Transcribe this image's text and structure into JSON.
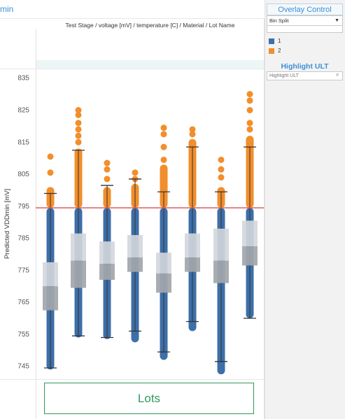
{
  "header": {
    "title_fragment": "min",
    "column_label": "Test Stage / voltage [mV] / temperature [C] / Material / Lot Name"
  },
  "footer": {
    "lots_label": "Lots"
  },
  "overlay_control": {
    "title": "Overlay Control",
    "selected": "Bin Split",
    "legend": [
      {
        "label": "1",
        "color": "#3d6fa8"
      },
      {
        "label": "2",
        "color": "#f28e2b"
      }
    ]
  },
  "highlight": {
    "title": "Highlight ULT",
    "placeholder": "Highlight ULT"
  },
  "chart_data": {
    "type": "box-plot with jittered points",
    "title": "",
    "xlabel": "",
    "ylabel": "Predicted VDDmin [mV]",
    "ylim": [
      741,
      838
    ],
    "yticks": [
      745,
      755,
      765,
      775,
      785,
      795,
      805,
      815,
      825,
      835
    ],
    "reference_line": 794.5,
    "reference_color": "#e05a5a",
    "series_colors": {
      "1": "#3d6fa8",
      "2": "#f28e2b"
    },
    "groups": [
      {
        "bin1_min": 744,
        "bin1_max": 794.5,
        "bin2_max": 801,
        "outliers": [
          805.5,
          810.5
        ],
        "whisker_low": 744.5,
        "whisker_high": 799,
        "q1": 762.5,
        "median": 770,
        "q3": 777.5
      },
      {
        "bin1_min": 754,
        "bin1_max": 794.5,
        "bin2_max": 813,
        "outliers": [
          815,
          817,
          819,
          821,
          823.5,
          825
        ],
        "whisker_low": 754.5,
        "whisker_high": 812.5,
        "q1": 769.5,
        "median": 778,
        "q3": 786.5
      },
      {
        "bin1_min": 753.5,
        "bin1_max": 794.5,
        "bin2_max": 801,
        "outliers": [
          803.5,
          806.5,
          808.5
        ],
        "whisker_low": 754,
        "whisker_high": 801.5,
        "q1": 772,
        "median": 777,
        "q3": 784
      },
      {
        "bin1_min": 752.5,
        "bin1_max": 794.5,
        "bin2_max": 802,
        "outliers": [
          803.5,
          805.5
        ],
        "whisker_low": 756,
        "whisker_high": 803.5,
        "q1": 774.5,
        "median": 779,
        "q3": 786
      },
      {
        "bin1_min": 747,
        "bin1_max": 794.5,
        "bin2_max": 808,
        "outliers": [
          809.5,
          813.5,
          817.5,
          819.5
        ],
        "whisker_low": 749.5,
        "whisker_high": 799.5,
        "q1": 768,
        "median": 774,
        "q3": 780.5
      },
      {
        "bin1_min": 756,
        "bin1_max": 794.5,
        "bin2_max": 816,
        "outliers": [
          817.5,
          819
        ],
        "whisker_low": 759,
        "whisker_high": 813.5,
        "q1": 774.5,
        "median": 779,
        "q3": 786.5
      },
      {
        "bin1_min": 742.5,
        "bin1_max": 794.5,
        "bin2_max": 801,
        "outliers": [
          804,
          806.5,
          809.5
        ],
        "whisker_low": 746.5,
        "whisker_high": 799.5,
        "q1": 771,
        "median": 778,
        "q3": 788
      },
      {
        "bin1_min": 760,
        "bin1_max": 794.5,
        "bin2_max": 817,
        "outliers": [
          819,
          821,
          825,
          828,
          830
        ],
        "whisker_low": 760,
        "whisker_high": 813.5,
        "q1": 776.5,
        "median": 782.5,
        "q3": 790.5
      }
    ]
  }
}
